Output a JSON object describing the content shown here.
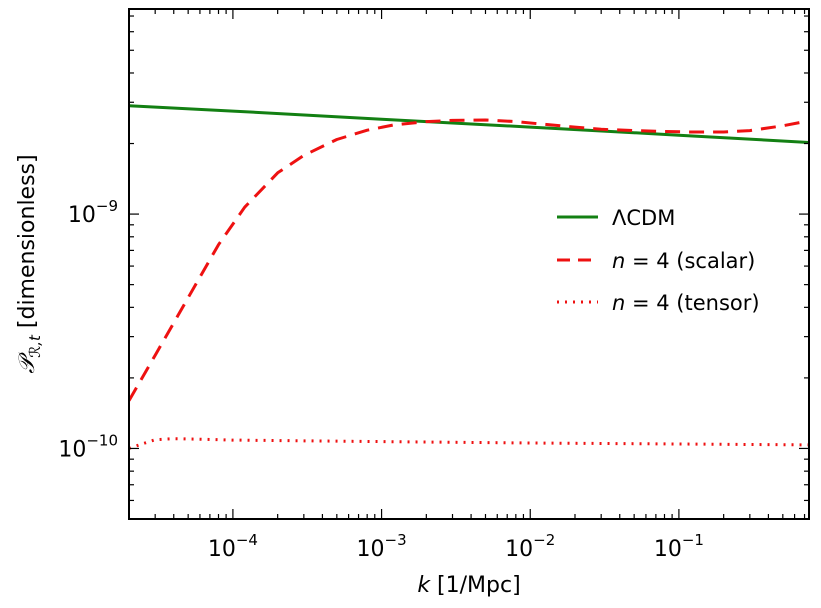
{
  "chart_data": {
    "type": "line",
    "xscale": "log",
    "yscale": "log",
    "xlim": [
      2e-05,
      0.75
    ],
    "ylim": [
      5e-11,
      7.5e-09
    ],
    "xlabel": {
      "var": "k",
      "unit": " [1/Mpc]"
    },
    "ylabel": {
      "var": "𝒫",
      "sub": "ℛ,t",
      "unit": " [dimensionless]"
    },
    "x_ticks": [
      {
        "base": "10",
        "exp": "−4",
        "value": 0.0001
      },
      {
        "base": "10",
        "exp": "−3",
        "value": 0.001
      },
      {
        "base": "10",
        "exp": "−2",
        "value": 0.01
      },
      {
        "base": "10",
        "exp": "−1",
        "value": 0.1
      }
    ],
    "y_ticks": [
      {
        "base": "10",
        "exp": "−9",
        "value": 1e-09
      },
      {
        "base": "10",
        "exp": "−10",
        "value": 1e-10
      }
    ],
    "legend_position": "center-right",
    "series": [
      {
        "name": "ΛCDM",
        "legend": {
          "var": "",
          "text": "ΛCDM"
        },
        "color": "#138013",
        "style": "solid",
        "x": [
          2e-05,
          0.0001,
          0.001,
          0.01,
          0.1,
          0.75
        ],
        "y": [
          2.9e-09,
          2.75e-09,
          2.54e-09,
          2.35e-09,
          2.17e-09,
          2.02e-09
        ]
      },
      {
        "name": "n = 4 (scalar)",
        "legend": {
          "var": "n",
          "text": " = 4 (scalar)"
        },
        "color": "#ee1111",
        "style": "dashed",
        "x": [
          2e-05,
          3e-05,
          5e-05,
          8e-05,
          0.00012,
          0.0002,
          0.0003,
          0.0005,
          0.0008,
          0.0012,
          0.002,
          0.003,
          0.005,
          0.008,
          0.012,
          0.02,
          0.03,
          0.05,
          0.08,
          0.12,
          0.2,
          0.3,
          0.5,
          0.75
        ],
        "y": [
          1.6e-10,
          2.5e-10,
          4.4e-10,
          7.4e-10,
          1.07e-09,
          1.5e-09,
          1.78e-09,
          2.08e-09,
          2.28e-09,
          2.4e-09,
          2.48e-09,
          2.51e-09,
          2.52e-09,
          2.48e-09,
          2.42e-09,
          2.35e-09,
          2.3e-09,
          2.27e-09,
          2.25e-09,
          2.24e-09,
          2.24e-09,
          2.27e-09,
          2.38e-09,
          2.5e-09
        ]
      },
      {
        "name": "n = 4 (tensor)",
        "legend": {
          "var": "n",
          "text": " = 4 (tensor)"
        },
        "color": "#ee1111",
        "style": "dotted",
        "x": [
          2e-05,
          2.5e-05,
          3e-05,
          4e-05,
          6e-05,
          0.0001,
          0.001,
          0.01,
          0.1,
          0.75
        ],
        "y": [
          1e-10,
          1.05e-10,
          1.09e-10,
          1.1e-10,
          1.095e-10,
          1.085e-10,
          1.07e-10,
          1.055e-10,
          1.045e-10,
          1.035e-10
        ]
      }
    ]
  }
}
